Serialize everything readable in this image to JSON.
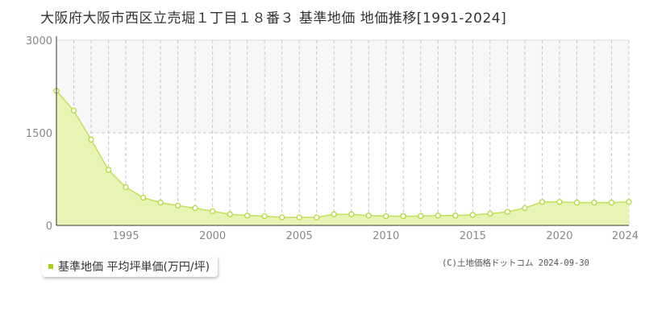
{
  "title": "大阪府大阪市西区立売堀１丁目１８番３ 基準地価 地価推移[1991-2024]",
  "legend": {
    "label": "基準地価 平均坪単価(万円/坪)"
  },
  "copyright": "(C)土地価格ドットコム 2024-09-30",
  "colors": {
    "fill": "#e8f4b4",
    "line": "#c4e05a",
    "marker": "#b6d83a",
    "legend": "#a9cf1e",
    "upper_band": "#f7f7fa"
  },
  "chart_data": {
    "type": "area",
    "title": "大阪府大阪市西区立売堀１丁目１８番３ 基準地価 地価推移[1991-2024]",
    "xlabel": "",
    "ylabel": "",
    "xlim": [
      1991,
      2024
    ],
    "ylim": [
      0,
      3000
    ],
    "y_ticks": [
      0,
      1500,
      3000
    ],
    "x_tick_labels": [
      1995,
      2000,
      2005,
      2010,
      2015,
      2020,
      2024
    ],
    "grid": true,
    "legend_position": "bottom-left",
    "series": [
      {
        "name": "基準地価 平均坪単価(万円/坪)",
        "x": [
          1991,
          1992,
          1993,
          1994,
          1995,
          1996,
          1997,
          1998,
          1999,
          2000,
          2001,
          2002,
          2003,
          2004,
          2005,
          2006,
          2007,
          2008,
          2009,
          2010,
          2011,
          2012,
          2013,
          2014,
          2015,
          2016,
          2017,
          2018,
          2019,
          2020,
          2021,
          2022,
          2023,
          2024
        ],
        "y": [
          2180,
          1860,
          1390,
          900,
          620,
          450,
          370,
          320,
          280,
          230,
          180,
          160,
          150,
          130,
          130,
          130,
          180,
          180,
          160,
          150,
          150,
          150,
          160,
          160,
          170,
          190,
          220,
          280,
          380,
          380,
          370,
          370,
          370,
          380
        ]
      }
    ]
  }
}
